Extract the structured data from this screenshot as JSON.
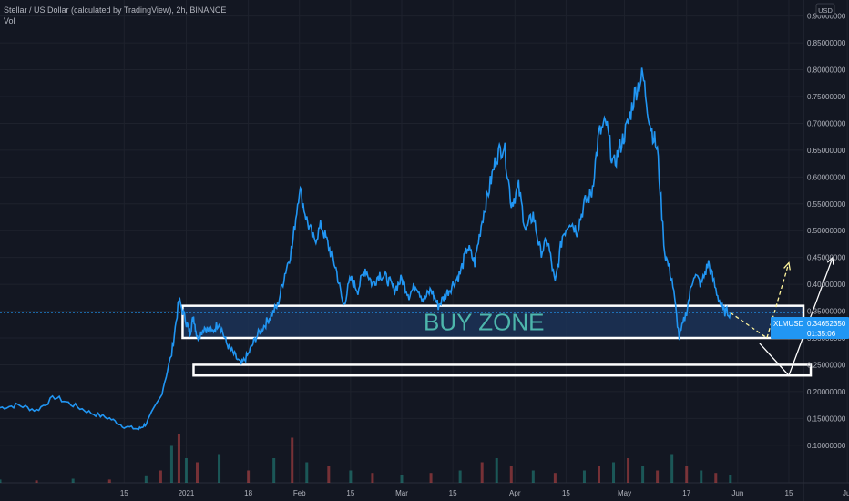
{
  "header": {
    "title": "Stellar / US Dollar (calculated by TradingView), 2h, BINANCE",
    "indicator": "Vol"
  },
  "currency_badge": "USD",
  "price_label": {
    "symbol": "XLMUSD",
    "price": "0.34652350",
    "countdown": "01:35:06"
  },
  "annotations": {
    "buy_zone_label": "BUY ZONE"
  },
  "colors": {
    "background": "#131722",
    "grid": "#1e222d",
    "price_line": "#2196f3",
    "zone_fill": "#1c3257",
    "zone_border": "#ffffff",
    "zone_text": "#4db6ac",
    "arrow_dashed": "#fff59d",
    "arrow_solid": "#ffffff",
    "vol_up": "#26a69a",
    "vol_down": "#ef5350",
    "price_tag": "#2196f3"
  },
  "chart_data": {
    "type": "line",
    "title": "Stellar / US Dollar (calculated by TradingView), 2h, BINANCE",
    "xlabel": "",
    "ylabel": "",
    "x_tick_labels": [
      "15",
      "2021",
      "18",
      "Feb",
      "15",
      "Mar",
      "15",
      "Apr",
      "15",
      "May",
      "17",
      "Jun",
      "15",
      "Jul"
    ],
    "y_tick_labels": [
      "0.10000000",
      "0.15000000",
      "0.20000000",
      "0.25000000",
      "0.30000000",
      "0.35000000",
      "0.40000000",
      "0.45000000",
      "0.50000000",
      "0.55000000",
      "0.60000000",
      "0.65000000",
      "0.70000000",
      "0.75000000",
      "0.80000000",
      "0.85000000",
      "0.90000000"
    ],
    "ylim": [
      0.03,
      0.93
    ],
    "grid": true,
    "x_range_days": [
      -20,
      200
    ],
    "x_tick_days": [
      14,
      31,
      48,
      62,
      76,
      90,
      104,
      121,
      135,
      151,
      168,
      182,
      196,
      212
    ],
    "series": [
      {
        "x": [
          -20,
          -15,
          -10,
          -5,
          0,
          5,
          10,
          14,
          18,
          20,
          24,
          27,
          29,
          31,
          32,
          33,
          34,
          36,
          38,
          40,
          42,
          44,
          46,
          48,
          50,
          52,
          54,
          56,
          58,
          60,
          62,
          64,
          66,
          68,
          70,
          72,
          74,
          76,
          78,
          80,
          82,
          84,
          86,
          88,
          90,
          92,
          94,
          96,
          98,
          100,
          102,
          104,
          106,
          108,
          110,
          112,
          114,
          116,
          118,
          120,
          122,
          124,
          126,
          128,
          130,
          132,
          134,
          136,
          138,
          140,
          142,
          144,
          146,
          148,
          150,
          152,
          154,
          156,
          158,
          160,
          162,
          164,
          166,
          168,
          170,
          172,
          174,
          176,
          178,
          180
        ],
        "y": [
          0.17,
          0.175,
          0.165,
          0.19,
          0.175,
          0.16,
          0.15,
          0.135,
          0.13,
          0.14,
          0.19,
          0.27,
          0.37,
          0.33,
          0.31,
          0.34,
          0.3,
          0.32,
          0.31,
          0.33,
          0.29,
          0.27,
          0.25,
          0.27,
          0.3,
          0.32,
          0.34,
          0.36,
          0.42,
          0.47,
          0.58,
          0.52,
          0.48,
          0.51,
          0.47,
          0.43,
          0.36,
          0.41,
          0.39,
          0.43,
          0.4,
          0.42,
          0.41,
          0.39,
          0.41,
          0.38,
          0.4,
          0.37,
          0.39,
          0.36,
          0.38,
          0.4,
          0.42,
          0.47,
          0.44,
          0.52,
          0.58,
          0.64,
          0.66,
          0.55,
          0.58,
          0.5,
          0.53,
          0.46,
          0.48,
          0.4,
          0.49,
          0.52,
          0.5,
          0.55,
          0.57,
          0.68,
          0.7,
          0.62,
          0.66,
          0.7,
          0.76,
          0.79,
          0.7,
          0.65,
          0.46,
          0.41,
          0.3,
          0.35,
          0.42,
          0.4,
          0.44,
          0.39,
          0.35,
          0.347
        ]
      }
    ],
    "volume": {
      "x": [
        -20,
        -10,
        0,
        10,
        20,
        24,
        27,
        29,
        31,
        34,
        40,
        48,
        55,
        60,
        64,
        70,
        76,
        82,
        90,
        98,
        106,
        112,
        116,
        120,
        126,
        132,
        140,
        144,
        148,
        152,
        156,
        160,
        164,
        168,
        172,
        176,
        180
      ],
      "y": [
        4,
        3,
        5,
        4,
        8,
        15,
        45,
        60,
        30,
        25,
        35,
        15,
        30,
        55,
        25,
        20,
        15,
        12,
        10,
        12,
        15,
        25,
        30,
        20,
        15,
        12,
        15,
        20,
        25,
        30,
        20,
        15,
        35,
        20,
        15,
        12,
        10
      ]
    },
    "annotations": [
      {
        "type": "rectangle",
        "label": "BUY ZONE",
        "y_range": [
          0.3,
          0.36
        ],
        "x_range": [
          30,
          200
        ]
      },
      {
        "type": "rectangle",
        "label": "",
        "y_range": [
          0.23,
          0.25
        ],
        "x_range": [
          33,
          202
        ]
      },
      {
        "type": "arrow-dashed",
        "points": [
          [
            180,
            0.347
          ],
          [
            190,
            0.3
          ],
          [
            196,
            0.44
          ]
        ]
      },
      {
        "type": "arrow-solid",
        "points": [
          [
            188,
            0.29
          ],
          [
            196,
            0.23
          ],
          [
            208,
            0.45
          ]
        ]
      }
    ]
  }
}
